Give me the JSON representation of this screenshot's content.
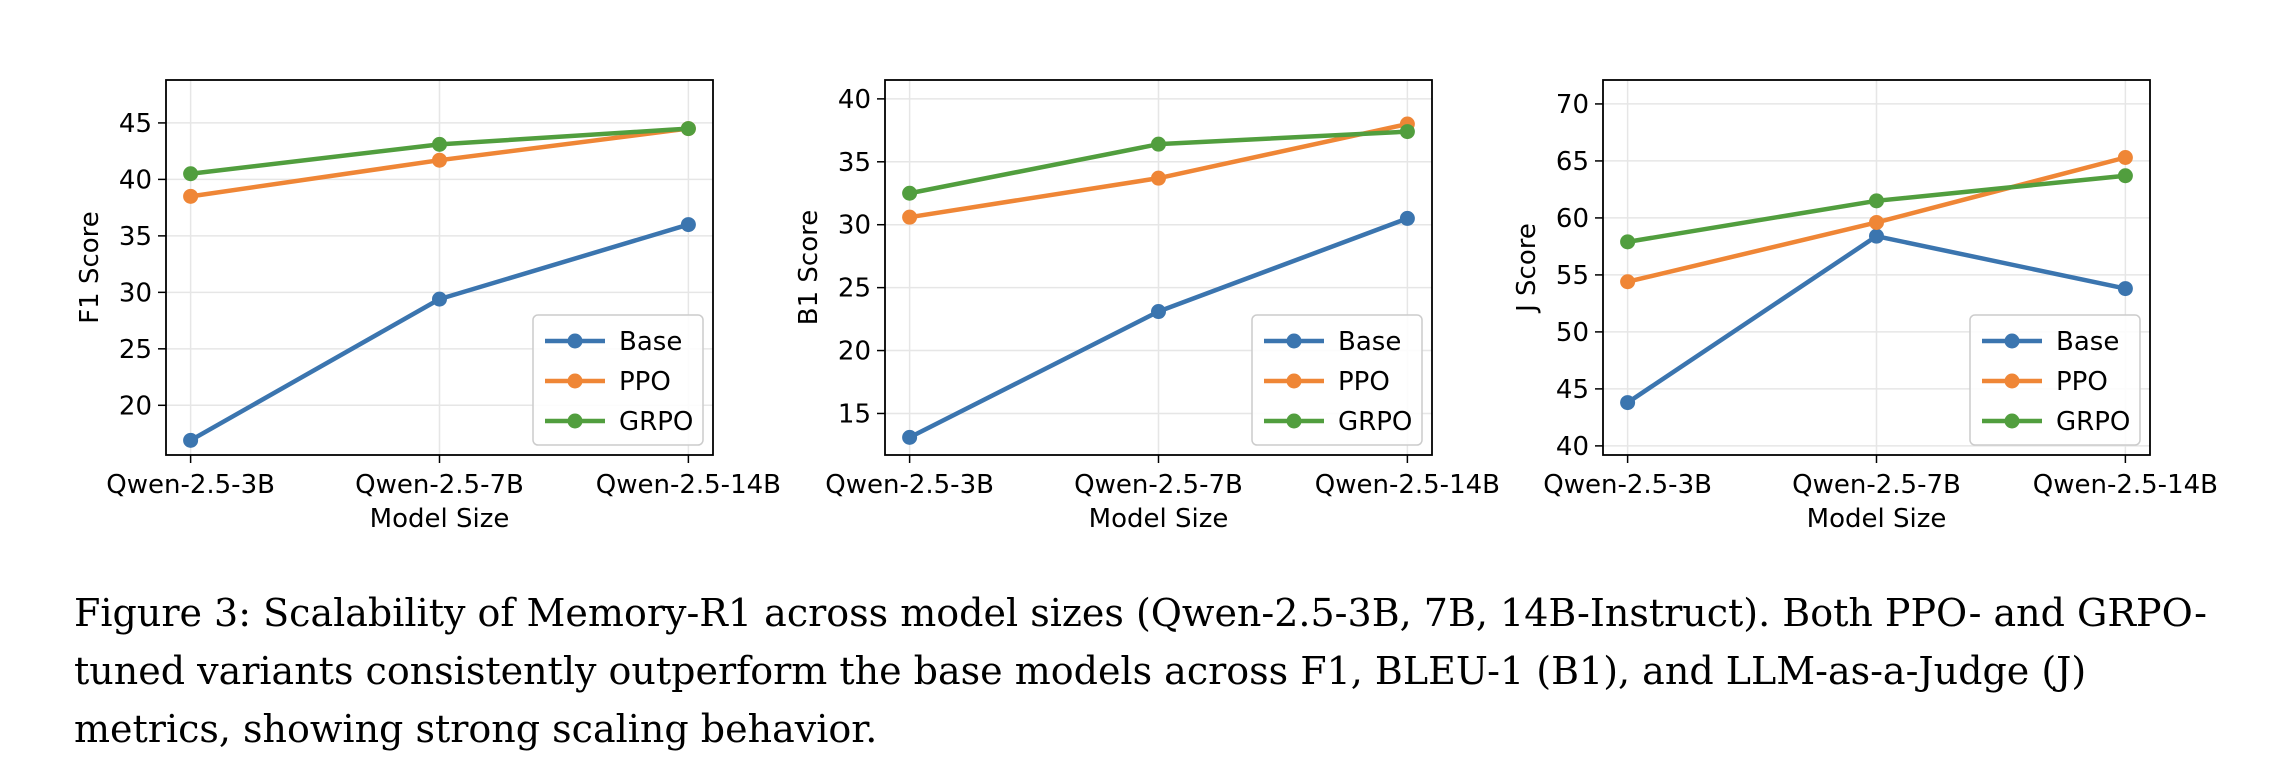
{
  "caption": {
    "label": "Figure 3:",
    "text": "Scalability of Memory-R1 across model sizes (Qwen-2.5-3B, 7B, 14B-Instruct). Both PPO- and GRPO-tuned variants consistently outperform the base models across F1, BLEU-1 (B1), and LLM-as-a-Judge (J) metrics, showing strong scaling behavior."
  },
  "colors": {
    "Base": "#3b75af",
    "PPO": "#ef8636",
    "GRPO": "#519e3e"
  },
  "chart_data": [
    {
      "type": "line",
      "xlabel": "Model Size",
      "ylabel": "F1 Score",
      "categories": [
        "Qwen-2.5-3B",
        "Qwen-2.5-7B",
        "Qwen-2.5-14B"
      ],
      "ylim": [
        15.6,
        48.8
      ],
      "yticks": [
        20,
        25,
        30,
        35,
        40,
        45
      ],
      "grid": true,
      "legend": "lower-right",
      "series": [
        {
          "name": "Base",
          "values": [
            16.9,
            29.4,
            36.0
          ]
        },
        {
          "name": "PPO",
          "values": [
            38.5,
            41.7,
            44.5
          ]
        },
        {
          "name": "GRPO",
          "values": [
            40.5,
            43.1,
            44.5
          ]
        }
      ]
    },
    {
      "type": "line",
      "xlabel": "Model Size",
      "ylabel": "B1 Score",
      "categories": [
        "Qwen-2.5-3B",
        "Qwen-2.5-7B",
        "Qwen-2.5-14B"
      ],
      "ylim": [
        11.7,
        41.5
      ],
      "yticks": [
        15,
        20,
        25,
        30,
        35,
        40
      ],
      "grid": true,
      "legend": "lower-right",
      "series": [
        {
          "name": "Base",
          "values": [
            13.1,
            23.1,
            30.5
          ]
        },
        {
          "name": "PPO",
          "values": [
            30.6,
            33.7,
            38.0
          ]
        },
        {
          "name": "GRPO",
          "values": [
            32.5,
            36.4,
            37.4
          ]
        }
      ]
    },
    {
      "type": "line",
      "xlabel": "Model Size",
      "ylabel": "J Score",
      "categories": [
        "Qwen-2.5-3B",
        "Qwen-2.5-7B",
        "Qwen-2.5-14B"
      ],
      "ylim": [
        39.2,
        72.1
      ],
      "yticks": [
        40,
        45,
        50,
        55,
        60,
        65,
        70
      ],
      "grid": true,
      "legend": "lower-right",
      "series": [
        {
          "name": "Base",
          "values": [
            43.8,
            58.4,
            53.8
          ]
        },
        {
          "name": "PPO",
          "values": [
            54.4,
            59.6,
            65.3
          ]
        },
        {
          "name": "GRPO",
          "values": [
            57.9,
            61.5,
            63.7
          ]
        }
      ]
    }
  ]
}
